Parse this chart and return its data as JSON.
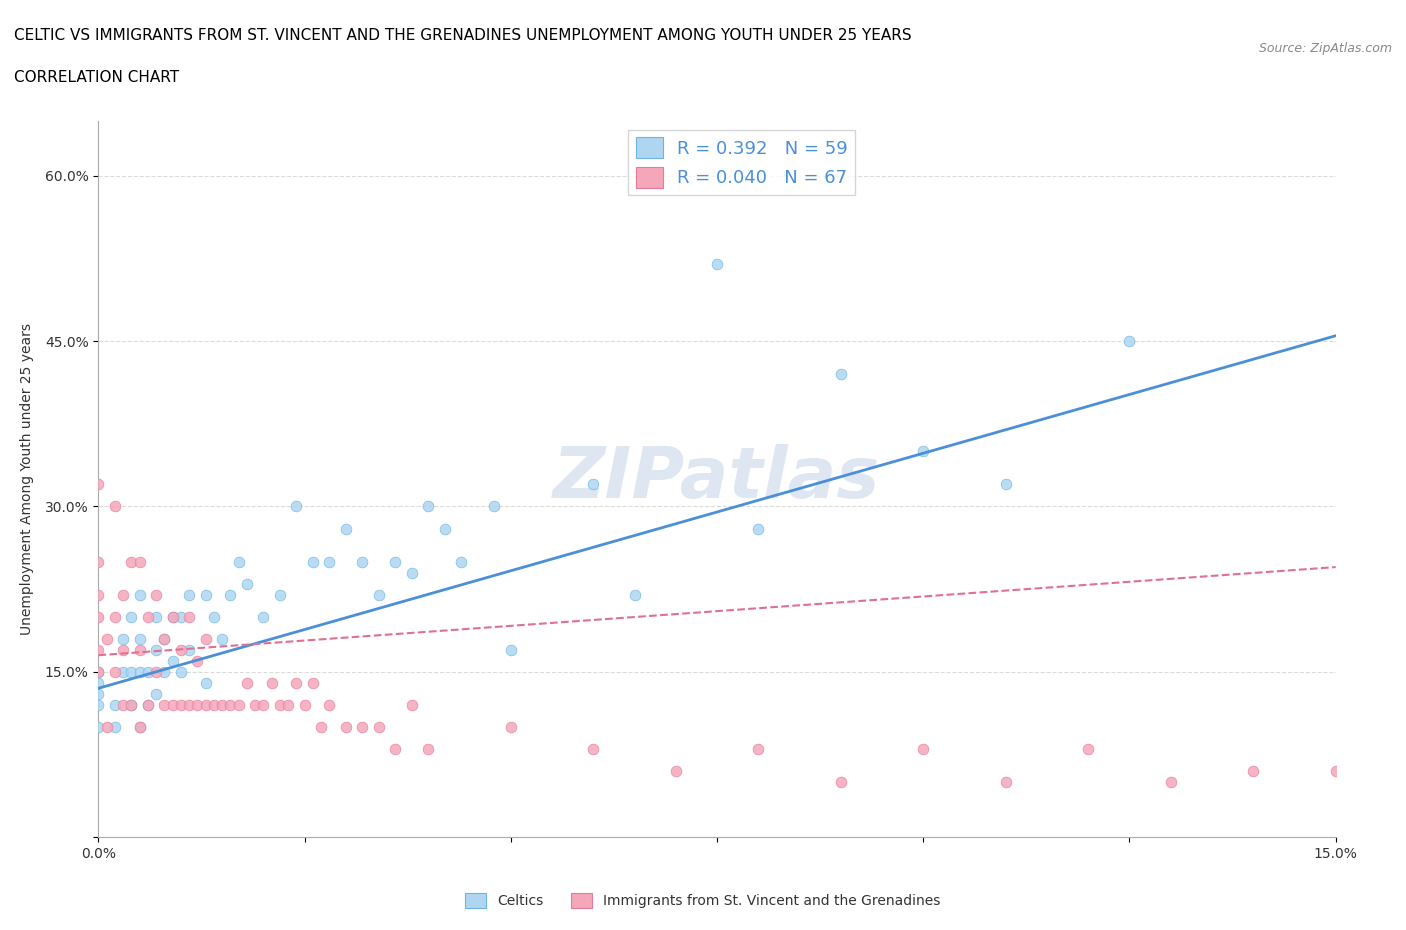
{
  "title_line1": "CELTIC VS IMMIGRANTS FROM ST. VINCENT AND THE GRENADINES UNEMPLOYMENT AMONG YOUTH UNDER 25 YEARS",
  "title_line2": "CORRELATION CHART",
  "source_text": "Source: ZipAtlas.com",
  "ylabel": "Unemployment Among Youth under 25 years",
  "xlim": [
    0.0,
    0.15
  ],
  "ylim": [
    0.0,
    0.65
  ],
  "celtic_color": "#6cb4e4",
  "celtic_color_light": "#aed6f1",
  "immigrant_color": "#f4a7b9",
  "immigrant_color_dark": "#e8799a",
  "trend_celtic_color": "#4a90d9",
  "trend_immigrant_color": "#e07090",
  "legend_text_color": "#4a90d9",
  "watermark": "ZIPatlas",
  "watermark_color": "#c8d8e8",
  "R_celtic": 0.392,
  "N_celtic": 59,
  "R_immigrant": 0.04,
  "N_immigrant": 67,
  "celtic_x": [
    0.0,
    0.0,
    0.0,
    0.0,
    0.0,
    0.002,
    0.002,
    0.003,
    0.003,
    0.004,
    0.004,
    0.004,
    0.005,
    0.005,
    0.005,
    0.005,
    0.006,
    0.006,
    0.007,
    0.007,
    0.007,
    0.008,
    0.008,
    0.009,
    0.009,
    0.01,
    0.01,
    0.011,
    0.011,
    0.013,
    0.013,
    0.014,
    0.015,
    0.016,
    0.017,
    0.018,
    0.02,
    0.022,
    0.024,
    0.026,
    0.028,
    0.03,
    0.032,
    0.034,
    0.036,
    0.038,
    0.04,
    0.042,
    0.044,
    0.048,
    0.05,
    0.06,
    0.065,
    0.075,
    0.08,
    0.09,
    0.1,
    0.11,
    0.125
  ],
  "celtic_y": [
    0.1,
    0.12,
    0.13,
    0.14,
    0.15,
    0.1,
    0.12,
    0.15,
    0.18,
    0.12,
    0.15,
    0.2,
    0.1,
    0.15,
    0.18,
    0.22,
    0.12,
    0.15,
    0.13,
    0.17,
    0.2,
    0.15,
    0.18,
    0.16,
    0.2,
    0.15,
    0.2,
    0.17,
    0.22,
    0.14,
    0.22,
    0.2,
    0.18,
    0.22,
    0.25,
    0.23,
    0.2,
    0.22,
    0.3,
    0.25,
    0.25,
    0.28,
    0.25,
    0.22,
    0.25,
    0.24,
    0.3,
    0.28,
    0.25,
    0.3,
    0.17,
    0.32,
    0.22,
    0.52,
    0.28,
    0.42,
    0.35,
    0.32,
    0.45
  ],
  "immigrant_x": [
    0.0,
    0.0,
    0.0,
    0.0,
    0.0,
    0.0,
    0.001,
    0.001,
    0.002,
    0.002,
    0.002,
    0.003,
    0.003,
    0.003,
    0.004,
    0.004,
    0.005,
    0.005,
    0.005,
    0.006,
    0.006,
    0.007,
    0.007,
    0.008,
    0.008,
    0.009,
    0.009,
    0.01,
    0.01,
    0.011,
    0.011,
    0.012,
    0.012,
    0.013,
    0.013,
    0.014,
    0.015,
    0.016,
    0.017,
    0.018,
    0.019,
    0.02,
    0.021,
    0.022,
    0.023,
    0.024,
    0.025,
    0.026,
    0.027,
    0.028,
    0.03,
    0.032,
    0.034,
    0.036,
    0.038,
    0.04,
    0.05,
    0.06,
    0.07,
    0.08,
    0.09,
    0.1,
    0.11,
    0.12,
    0.13,
    0.14,
    0.15
  ],
  "immigrant_y": [
    0.15,
    0.17,
    0.2,
    0.22,
    0.25,
    0.32,
    0.1,
    0.18,
    0.15,
    0.2,
    0.3,
    0.12,
    0.17,
    0.22,
    0.12,
    0.25,
    0.1,
    0.17,
    0.25,
    0.12,
    0.2,
    0.15,
    0.22,
    0.12,
    0.18,
    0.12,
    0.2,
    0.12,
    0.17,
    0.12,
    0.2,
    0.12,
    0.16,
    0.12,
    0.18,
    0.12,
    0.12,
    0.12,
    0.12,
    0.14,
    0.12,
    0.12,
    0.14,
    0.12,
    0.12,
    0.14,
    0.12,
    0.14,
    0.1,
    0.12,
    0.1,
    0.1,
    0.1,
    0.08,
    0.12,
    0.08,
    0.1,
    0.08,
    0.06,
    0.08,
    0.05,
    0.08,
    0.05,
    0.08,
    0.05,
    0.06,
    0.06
  ],
  "celtic_trend_x": [
    0.0,
    0.15
  ],
  "celtic_trend_y": [
    0.135,
    0.455
  ],
  "immigrant_trend_x": [
    0.0,
    0.15
  ],
  "immigrant_trend_y": [
    0.165,
    0.245
  ]
}
